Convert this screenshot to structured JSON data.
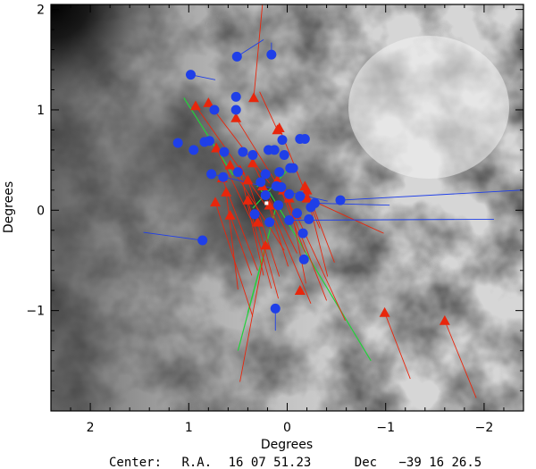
{
  "chart_data": {
    "type": "scatter",
    "xlabel": "Degrees",
    "ylabel": "Degrees",
    "xlim": [
      2.4,
      -2.4
    ],
    "ylim": [
      -2.0,
      2.05
    ],
    "x_reversed": true,
    "xticks": [
      2,
      1,
      0,
      -1,
      -2
    ],
    "xtick_labels": [
      "2",
      "1",
      "0",
      "−1",
      "−2"
    ],
    "yticks": [
      -1,
      0,
      1,
      2
    ],
    "ytick_labels": [
      "−1",
      "0",
      "1",
      "2"
    ],
    "grid": false,
    "background": "grayscale extinction map",
    "caption": {
      "center_label": "Center:",
      "ra_label": "R.A.",
      "ra_value": "16 07 51.23",
      "dec_label": "Dec",
      "dec_value": "−39 16 26.5"
    },
    "colors": {
      "circle": "#1f3fe8",
      "triangle": "#e8260c",
      "green": "#22d13a",
      "white_marker": "#ffffff"
    },
    "circles": [
      {
        "x": 0.16,
        "y": 1.55,
        "vx": 0.0,
        "vy": 0.12
      },
      {
        "x": 0.51,
        "y": 1.53,
        "vx": -0.27,
        "vy": 0.17
      },
      {
        "x": 0.98,
        "y": 1.35,
        "vx": -0.25,
        "vy": -0.05
      },
      {
        "x": 0.52,
        "y": 1.13,
        "vx": 0.0,
        "vy": 0.0
      },
      {
        "x": 0.74,
        "y": 1.0,
        "vx": 0.0,
        "vy": 0.0
      },
      {
        "x": 0.52,
        "y": 1.0,
        "vx": 0.0,
        "vy": 0.0
      },
      {
        "x": 1.11,
        "y": 0.67,
        "vx": 0.0,
        "vy": 0.0
      },
      {
        "x": 0.84,
        "y": 0.68,
        "vx": 0.0,
        "vy": 0.0
      },
      {
        "x": 0.79,
        "y": 0.69,
        "vx": 0.0,
        "vy": 0.0
      },
      {
        "x": 0.95,
        "y": 0.6,
        "vx": 0.0,
        "vy": 0.0
      },
      {
        "x": 0.64,
        "y": 0.58,
        "vx": 0.0,
        "vy": 0.0
      },
      {
        "x": 0.45,
        "y": 0.58,
        "vx": 0.0,
        "vy": 0.0
      },
      {
        "x": 0.35,
        "y": 0.55,
        "vx": 0.0,
        "vy": 0.0
      },
      {
        "x": 0.19,
        "y": 0.6,
        "vx": 0.0,
        "vy": 0.0
      },
      {
        "x": 0.13,
        "y": 0.6,
        "vx": 0.0,
        "vy": 0.0
      },
      {
        "x": 0.05,
        "y": 0.7,
        "vx": 0.0,
        "vy": 0.0
      },
      {
        "x": -0.13,
        "y": 0.71,
        "vx": 0.0,
        "vy": 0.0
      },
      {
        "x": -0.18,
        "y": 0.71,
        "vx": 0.0,
        "vy": 0.0
      },
      {
        "x": 0.03,
        "y": 0.55,
        "vx": 0.0,
        "vy": 0.0
      },
      {
        "x": -0.03,
        "y": 0.42,
        "vx": 0.0,
        "vy": 0.0
      },
      {
        "x": 0.77,
        "y": 0.36,
        "vx": -1.18,
        "vy": -0.27
      },
      {
        "x": 0.65,
        "y": 0.33,
        "vx": 0.0,
        "vy": 0.0
      },
      {
        "x": 0.5,
        "y": 0.38,
        "vx": 0.0,
        "vy": 0.0
      },
      {
        "x": 0.22,
        "y": 0.36,
        "vx": 0.0,
        "vy": 0.0
      },
      {
        "x": 0.08,
        "y": 0.38,
        "vx": 0.0,
        "vy": 0.0
      },
      {
        "x": -0.06,
        "y": 0.42,
        "vx": 0.0,
        "vy": 0.0
      },
      {
        "x": 0.27,
        "y": 0.28,
        "vx": 0.0,
        "vy": 0.0
      },
      {
        "x": 0.11,
        "y": 0.24,
        "vx": 0.0,
        "vy": 0.0
      },
      {
        "x": 0.06,
        "y": 0.23,
        "vx": 0.0,
        "vy": 0.0
      },
      {
        "x": -0.02,
        "y": 0.16,
        "vx": 0.0,
        "vy": 0.0
      },
      {
        "x": -0.13,
        "y": 0.14,
        "vx": 0.0,
        "vy": 0.0
      },
      {
        "x": -0.28,
        "y": 0.07,
        "vx": -0.76,
        "vy": -0.02
      },
      {
        "x": -0.54,
        "y": 0.1,
        "vx": -2.21,
        "vy": 0.12
      },
      {
        "x": 0.09,
        "y": 0.05,
        "vx": 0.0,
        "vy": 0.0
      },
      {
        "x": -0.1,
        "y": -0.03,
        "vx": 0.0,
        "vy": 0.0
      },
      {
        "x": -0.02,
        "y": -0.1,
        "vx": -2.08,
        "vy": 0.01
      },
      {
        "x": -0.22,
        "y": -0.09,
        "vx": 0.0,
        "vy": 0.0
      },
      {
        "x": 0.33,
        "y": -0.04,
        "vx": 0.0,
        "vy": 0.0
      },
      {
        "x": 0.18,
        "y": -0.12,
        "vx": 0.0,
        "vy": 0.0
      },
      {
        "x": -0.16,
        "y": -0.23,
        "vx": 0.0,
        "vy": 0.0
      },
      {
        "x": 0.86,
        "y": -0.3,
        "vx": 0.6,
        "vy": 0.08
      },
      {
        "x": -0.17,
        "y": -0.49,
        "vx": 0.0,
        "vy": 0.0
      },
      {
        "x": 0.12,
        "y": -0.98,
        "vx": 0.0,
        "vy": -0.22
      },
      {
        "x": 0.22,
        "y": 0.15,
        "vx": 0.0,
        "vy": 0.0
      },
      {
        "x": -0.24,
        "y": 0.03,
        "vx": 0.0,
        "vy": 0.0
      }
    ],
    "triangles": [
      {
        "x": 0.8,
        "y": 1.07,
        "vx": -0.62,
        "vy": -0.8
      },
      {
        "x": 0.93,
        "y": 1.04,
        "vx": -0.71,
        "vy": -0.99
      },
      {
        "x": 0.52,
        "y": 0.92,
        "vx": -0.58,
        "vy": -0.92
      },
      {
        "x": 0.08,
        "y": 0.82,
        "vx": -0.41,
        "vy": -1.0
      },
      {
        "x": 0.72,
        "y": 0.62,
        "vx": -0.38,
        "vy": -0.77
      },
      {
        "x": 0.58,
        "y": 0.45,
        "vx": -0.55,
        "vy": -0.85
      },
      {
        "x": 0.35,
        "y": 0.47,
        "vx": -0.45,
        "vy": -0.9
      },
      {
        "x": 0.66,
        "y": 0.32,
        "vx": -0.36,
        "vy": -0.92
      },
      {
        "x": 0.4,
        "y": 0.3,
        "vx": -0.32,
        "vy": -0.96
      },
      {
        "x": 0.25,
        "y": 0.24,
        "vx": -0.26,
        "vy": -0.8
      },
      {
        "x": 0.1,
        "y": 0.3,
        "vx": -0.28,
        "vy": -0.72
      },
      {
        "x": -0.18,
        "y": 0.24,
        "vx": -0.23,
        "vy": -0.9
      },
      {
        "x": -0.02,
        "y": 0.12,
        "vx": -0.17,
        "vy": -0.85
      },
      {
        "x": 0.4,
        "y": 0.1,
        "vx": -0.24,
        "vy": -0.88
      },
      {
        "x": 0.73,
        "y": 0.08,
        "vx": -0.38,
        "vy": -1.14
      },
      {
        "x": 0.18,
        "y": 0.05,
        "vx": -0.42,
        "vy": -0.98
      },
      {
        "x": -0.2,
        "y": 0.12,
        "vx": -0.78,
        "vy": -0.35
      },
      {
        "x": -0.09,
        "y": -0.04,
        "vx": -0.5,
        "vy": -1.06
      },
      {
        "x": 0.3,
        "y": -0.12,
        "vx": -0.21,
        "vy": -0.76
      },
      {
        "x": 0.58,
        "y": -0.05,
        "vx": -0.22,
        "vy": -0.6
      },
      {
        "x": 0.22,
        "y": -0.35,
        "vx": 0.26,
        "vy": -1.36
      },
      {
        "x": -0.13,
        "y": -0.8,
        "vx": 0.0,
        "vy": 0.0
      },
      {
        "x": 0.34,
        "y": 1.12,
        "vx": -0.1,
        "vy": 1.05
      },
      {
        "x": -0.99,
        "y": -1.02,
        "vx": -0.26,
        "vy": -0.66
      },
      {
        "x": -1.6,
        "y": -1.1,
        "vx": -0.32,
        "vy": -0.77
      },
      {
        "x": 0.1,
        "y": 0.8,
        "vx": 0.18,
        "vy": 0.38
      },
      {
        "x": 0.48,
        "y": 0.4,
        "vx": -0.24,
        "vy": -1.05
      },
      {
        "x": 0.04,
        "y": 0.2,
        "vx": -0.44,
        "vy": -1.1
      },
      {
        "x": 0.62,
        "y": 0.18,
        "vx": -0.12,
        "vy": -0.97
      },
      {
        "x": -0.2,
        "y": 0.2,
        "vx": -0.28,
        "vy": -0.72
      }
    ],
    "green_segments": [
      {
        "x1": 1.05,
        "y1": 1.12,
        "x2": 0.55,
        "y2": 0.35
      },
      {
        "x1": 0.4,
        "y1": -1.02,
        "x2": 0.1,
        "y2": 0.08
      },
      {
        "x1": 0.18,
        "y1": 0.18,
        "x2": -0.85,
        "y2": -1.5
      },
      {
        "x1": 0.5,
        "y1": -1.4,
        "x2": 0.18,
        "y2": -0.22
      },
      {
        "x1": -0.05,
        "y1": 0.45,
        "x2": 0.35,
        "y2": 0.02
      }
    ],
    "green_crosses": [
      {
        "x": 0.27,
        "y": 0.27
      },
      {
        "x": 0.23,
        "y": 0.16
      }
    ],
    "white_marker": {
      "x": 0.21,
      "y": 0.07
    }
  }
}
